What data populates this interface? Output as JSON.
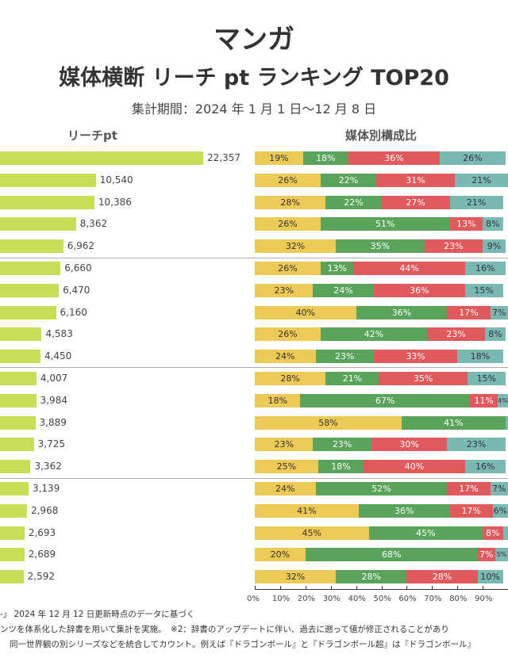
{
  "title": "マンガ",
  "subtitle_title": "媒体横断 リーチ pt ランキング TOP20",
  "period": "集計期間：2024 年 1 月 1 日～12 月 8 日",
  "footnotes": [
    "-」 2024 年 12 月 12 日更新時点のデータに基づく",
    "ンツを体系化した辞書を用いて集計を実施。　※2：辞書のアップデートに伴い、過去に遡って値が修正されることがあり",
    "同一世界観の別シリーズなどを統合してカウント。例えば『ドラゴンボール』と『ドラゴンボール超』は『ドラゴンボール』"
  ],
  "colors": {
    "reach": "#c9de56",
    "seg": [
      "#edc955",
      "#5aa35b",
      "#e0595d",
      "#7ab8b4"
    ],
    "segText": [
      "#333",
      "#fff",
      "#fff",
      "#333"
    ]
  },
  "chart_data": [
    {
      "type": "bar",
      "title": "リーチpt",
      "values": [
        22357,
        10540,
        10386,
        8362,
        6962,
        6660,
        6470,
        6160,
        4583,
        4450,
        4007,
        3984,
        3889,
        3725,
        3362,
        3139,
        2968,
        2693,
        2689,
        2592
      ],
      "labels": [
        "22,357",
        "10,540",
        "10,386",
        "8,362",
        "6,962",
        "6,660",
        "6,470",
        "6,160",
        "4,583",
        "4,450",
        "4,007",
        "3,984",
        "3,889",
        "3,725",
        "3,362",
        "3,139",
        "2,968",
        "2,693",
        "2,689",
        "2,592"
      ]
    },
    {
      "type": "bar",
      "stacked": true,
      "title": "媒体別構成比",
      "xlim": [
        0,
        100
      ],
      "ticks": [
        "0%",
        "10%",
        "20%",
        "30%",
        "40%",
        "50%",
        "60%",
        "70%",
        "80%",
        "90%"
      ],
      "rows": [
        [
          19,
          18,
          36,
          26
        ],
        [
          26,
          22,
          31,
          21
        ],
        [
          28,
          22,
          27,
          21
        ],
        [
          26,
          51,
          13,
          8
        ],
        [
          32,
          35,
          23,
          9
        ],
        [
          26,
          13,
          44,
          16
        ],
        [
          23,
          24,
          36,
          15
        ],
        [
          40,
          36,
          17,
          7
        ],
        [
          26,
          42,
          23,
          8
        ],
        [
          24,
          23,
          33,
          18
        ],
        [
          28,
          21,
          35,
          15
        ],
        [
          18,
          67,
          11,
          4
        ],
        [
          58,
          41,
          0,
          1
        ],
        [
          23,
          23,
          30,
          23
        ],
        [
          25,
          18,
          40,
          16
        ],
        [
          24,
          52,
          17,
          7
        ],
        [
          41,
          36,
          17,
          6
        ],
        [
          45,
          45,
          8,
          2
        ],
        [
          20,
          68,
          7,
          5
        ],
        [
          32,
          28,
          28,
          10
        ]
      ]
    }
  ]
}
